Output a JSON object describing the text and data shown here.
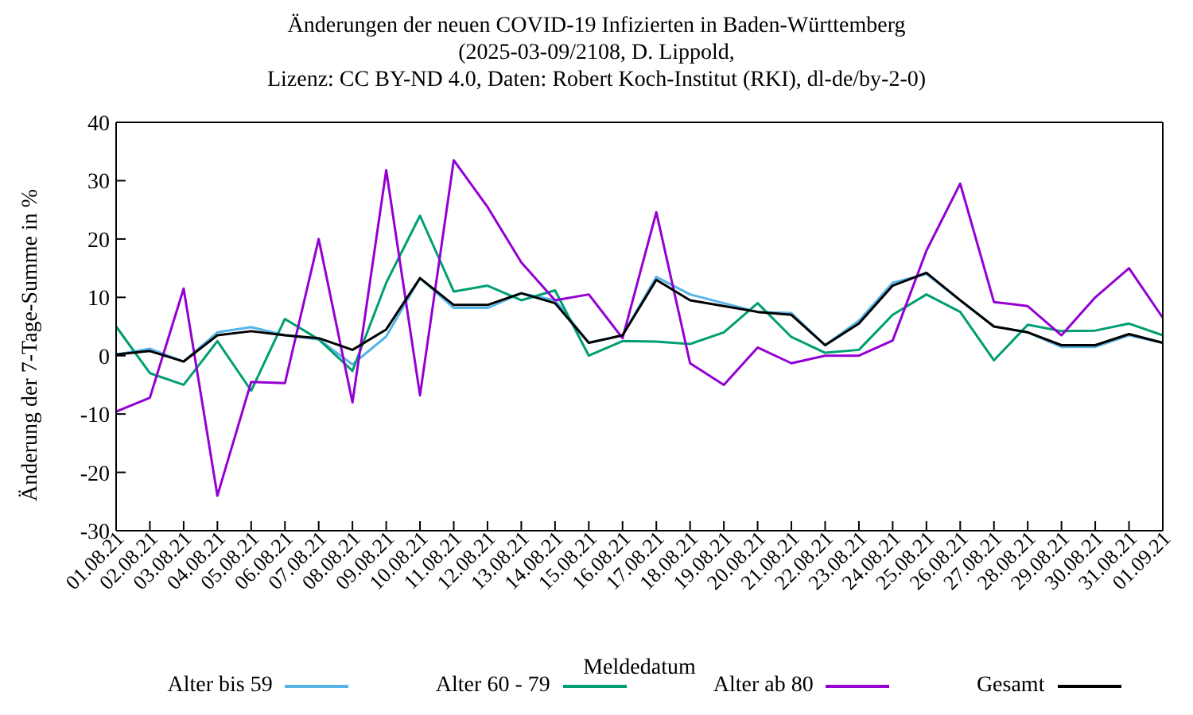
{
  "chart_data": {
    "type": "line",
    "title": "Änderungen der neuen COVID-19 Infizierten in Baden-Württemberg\n(2025-03-09/2108, D. Lippold,\nLizenz: CC BY-ND 4.0, Daten: Robert Koch-Institut (RKI), dl-de/by-2-0)",
    "xlabel": "Meldedatum",
    "ylabel": "Änderung der 7-Tage-Summe in %",
    "categories": [
      "01.08.21",
      "02.08.21",
      "03.08.21",
      "04.08.21",
      "05.08.21",
      "06.08.21",
      "07.08.21",
      "08.08.21",
      "09.08.21",
      "10.08.21",
      "11.08.21",
      "12.08.21",
      "13.08.21",
      "14.08.21",
      "15.08.21",
      "16.08.21",
      "17.08.21",
      "18.08.21",
      "19.08.21",
      "20.08.21",
      "21.08.21",
      "22.08.21",
      "23.08.21",
      "24.08.21",
      "25.08.21",
      "26.08.21",
      "27.08.21",
      "28.08.21",
      "29.08.21",
      "30.08.21",
      "31.08.21",
      "01.09.21"
    ],
    "series": [
      {
        "name": "Alter bis 59",
        "color": "#56b4e9",
        "values": [
          0.2,
          1.2,
          -1,
          4,
          4.9,
          3.5,
          2.8,
          -1.5,
          3.3,
          13.3,
          8.2,
          8.2,
          10.7,
          9.5,
          2.2,
          3.5,
          13.5,
          10.5,
          9,
          7.5,
          7.3,
          1.8,
          6,
          12.5,
          14,
          9.5,
          5,
          4,
          1.5,
          1.5,
          3.5,
          2.2
        ]
      },
      {
        "name": "Alter 60 - 79",
        "color": "#009e73",
        "values": [
          5,
          -3,
          -5,
          2.5,
          -6,
          6.3,
          2.8,
          -2.6,
          12.5,
          24,
          11,
          12,
          9.5,
          11.2,
          0,
          2.5,
          2.4,
          2,
          4,
          9,
          3.2,
          0.5,
          1,
          7,
          10.5,
          7.5,
          -0.8,
          5.3,
          4.2,
          4.3,
          5.5,
          3.5
        ]
      },
      {
        "name": "Alter ab 80",
        "color": "#9400d3",
        "values": [
          -9.6,
          -7.2,
          11.5,
          -24,
          -4.5,
          -4.7,
          20,
          -8,
          31.8,
          -6.8,
          33.5,
          25.5,
          16,
          9.5,
          10.5,
          3,
          24.6,
          -1.3,
          -5,
          1.4,
          -1.3,
          0,
          0,
          2.6,
          18,
          29.5,
          9.2,
          8.5,
          3.5,
          10,
          15,
          6.5
        ]
      },
      {
        "name": "Gesamt",
        "color": "#000000",
        "values": [
          0.2,
          0.8,
          -1,
          3.5,
          4.2,
          3.5,
          3,
          1,
          4.5,
          13.3,
          8.7,
          8.7,
          10.7,
          9,
          2.2,
          3.5,
          13,
          9.5,
          8.5,
          7.5,
          7,
          1.8,
          5.5,
          12,
          14.2,
          9.5,
          5,
          4,
          1.8,
          1.8,
          3.7,
          2.2
        ]
      }
    ],
    "ylim": [
      -30,
      40
    ],
    "yticks": [
      -30,
      -20,
      -10,
      0,
      10,
      20,
      30,
      40
    ],
    "grid": false,
    "legend": "bottom",
    "marker": "none",
    "line_style": "solid"
  }
}
